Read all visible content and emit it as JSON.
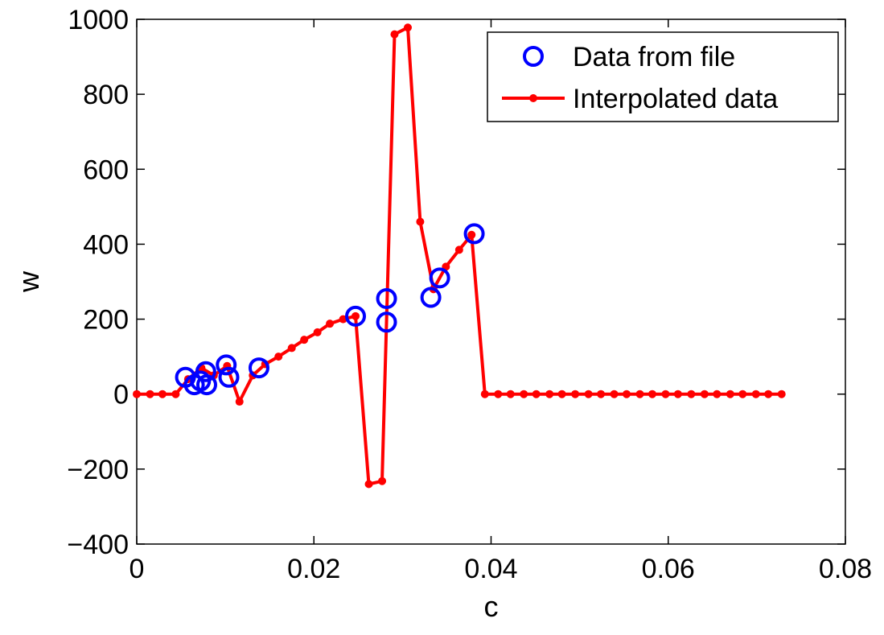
{
  "chart_data": {
    "type": "line",
    "title": "",
    "xlabel": "c",
    "ylabel": "w",
    "xlim": [
      0,
      0.08
    ],
    "ylim": [
      -400,
      1000
    ],
    "x_ticks": [
      0,
      0.02,
      0.04,
      0.06,
      0.08
    ],
    "x_tick_labels": [
      "0",
      "0.02",
      "0.04",
      "0.06",
      "0.08"
    ],
    "y_ticks": [
      -400,
      -200,
      0,
      200,
      400,
      600,
      800,
      1000
    ],
    "y_tick_labels": [
      "−400",
      "−200",
      "0",
      "200",
      "400",
      "600",
      "800",
      "1000"
    ],
    "grid": false,
    "legend_position": "top-right",
    "series": [
      {
        "name": "Data from file",
        "style": "markers",
        "marker": "circle-open",
        "color": "#0000ff",
        "points": [
          [
            0.0055,
            45
          ],
          [
            0.0065,
            25
          ],
          [
            0.0072,
            35
          ],
          [
            0.0078,
            60
          ],
          [
            0.0079,
            25
          ],
          [
            0.0101,
            78
          ],
          [
            0.0104,
            45
          ],
          [
            0.0138,
            70
          ],
          [
            0.0247,
            208
          ],
          [
            0.0282,
            255
          ],
          [
            0.0282,
            192
          ],
          [
            0.0332,
            258
          ],
          [
            0.0342,
            310
          ],
          [
            0.0381,
            428
          ]
        ]
      },
      {
        "name": "Interpolated data",
        "style": "line-dot",
        "color": "#ff0000",
        "points": [
          [
            0.0,
            0
          ],
          [
            0.0015,
            0
          ],
          [
            0.0029,
            0
          ],
          [
            0.0044,
            0
          ],
          [
            0.0058,
            40
          ],
          [
            0.0073,
            70
          ],
          [
            0.0087,
            50
          ],
          [
            0.0102,
            75
          ],
          [
            0.0116,
            -20
          ],
          [
            0.0131,
            50
          ],
          [
            0.0145,
            80
          ],
          [
            0.016,
            100
          ],
          [
            0.0175,
            123
          ],
          [
            0.0189,
            145
          ],
          [
            0.0204,
            165
          ],
          [
            0.0218,
            188
          ],
          [
            0.0233,
            200
          ],
          [
            0.0247,
            208
          ],
          [
            0.0262,
            -240
          ],
          [
            0.0277,
            -232
          ],
          [
            0.0291,
            960
          ],
          [
            0.0306,
            978
          ],
          [
            0.032,
            460
          ],
          [
            0.0335,
            280
          ],
          [
            0.0349,
            340
          ],
          [
            0.0364,
            385
          ],
          [
            0.0378,
            425
          ],
          [
            0.0393,
            0
          ],
          [
            0.0408,
            0
          ],
          [
            0.0422,
            0
          ],
          [
            0.0437,
            0
          ],
          [
            0.0451,
            0
          ],
          [
            0.0466,
            0
          ],
          [
            0.048,
            0
          ],
          [
            0.0495,
            0
          ],
          [
            0.051,
            0
          ],
          [
            0.0524,
            0
          ],
          [
            0.0539,
            0
          ],
          [
            0.0553,
            0
          ],
          [
            0.0568,
            0
          ],
          [
            0.0582,
            0
          ],
          [
            0.0597,
            0
          ],
          [
            0.0611,
            0
          ],
          [
            0.0626,
            0
          ],
          [
            0.0641,
            0
          ],
          [
            0.0655,
            0
          ],
          [
            0.067,
            0
          ],
          [
            0.0684,
            0
          ],
          [
            0.0699,
            0
          ],
          [
            0.0713,
            0
          ],
          [
            0.0728,
            0
          ]
        ]
      }
    ]
  }
}
